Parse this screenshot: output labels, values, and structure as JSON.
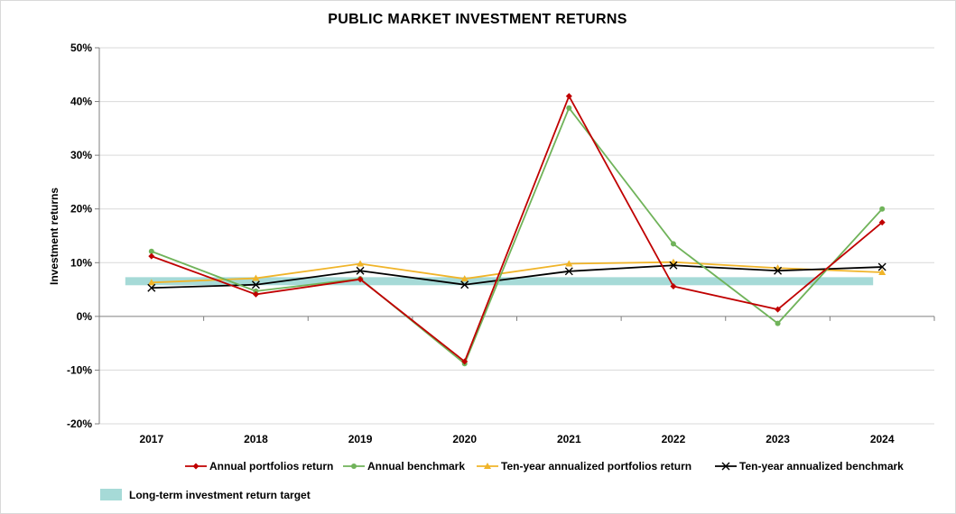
{
  "chart_data": {
    "type": "line",
    "title": "PUBLIC MARKET INVESTMENT RETURNS",
    "ylabel": "Investment returns",
    "xlabel": "",
    "x": [
      "2017",
      "2018",
      "2019",
      "2020",
      "2021",
      "2022",
      "2023",
      "2024"
    ],
    "yticks": [
      "-20%",
      "-10%",
      "0%",
      "10%",
      "20%",
      "30%",
      "40%",
      "50%"
    ],
    "ylim": [
      -20,
      50
    ],
    "y_unit": "%",
    "grid": "horizontal",
    "legend_placement": "bottom",
    "series": [
      {
        "name": "Annual portfolios return",
        "color": "#c00000",
        "marker": "diamond",
        "values": [
          11.2,
          4.1,
          6.9,
          -8.4,
          41.0,
          5.6,
          1.3,
          17.5
        ]
      },
      {
        "name": "Annual benchmark",
        "color": "#70b35a",
        "marker": "circle",
        "values": [
          12.1,
          4.7,
          7.0,
          -8.8,
          38.8,
          13.5,
          -1.3,
          20.0
        ]
      },
      {
        "name": "Ten-year annualized portfolios return",
        "color": "#f0b429",
        "marker": "triangle",
        "values": [
          6.3,
          7.1,
          9.8,
          7.0,
          9.8,
          10.1,
          9.0,
          8.2
        ]
      },
      {
        "name": "Ten-year annualized benchmark",
        "color": "#000000",
        "marker": "x",
        "values": [
          5.3,
          5.9,
          8.5,
          5.9,
          8.4,
          9.5,
          8.5,
          9.2
        ]
      }
    ],
    "target_band": {
      "name": "Long-term investment return target",
      "color": "#a6dad7",
      "range": [
        5.8,
        7.3
      ]
    }
  }
}
